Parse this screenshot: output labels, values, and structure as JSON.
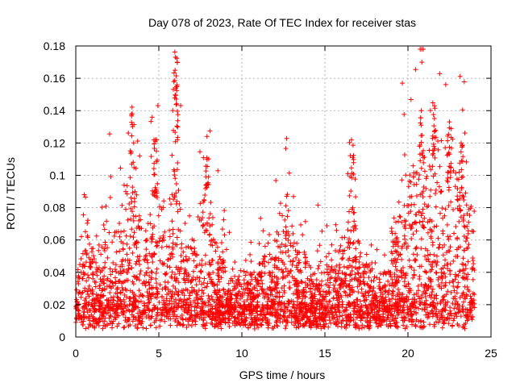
{
  "chart_data": {
    "type": "scatter",
    "title": "Day 078 of 2023, Rate Of TEC Index for receiver stas",
    "xlabel": "GPS time / hours",
    "ylabel": "ROTI / TECUs",
    "xlim": [
      0,
      25
    ],
    "ylim": [
      0,
      0.18
    ],
    "xticks": [
      0,
      5,
      10,
      15,
      20,
      25
    ],
    "yticks": [
      0,
      0.02,
      0.04,
      0.06,
      0.08,
      0.1,
      0.12,
      0.14,
      0.16,
      0.18
    ],
    "xtick_labels": [
      "0",
      "5",
      "10",
      "15",
      "20",
      "25"
    ],
    "ytick_labels": [
      "0",
      "0.02",
      "0.04",
      "0.06",
      "0.08",
      "0.1",
      "0.12",
      "0.14",
      "0.16",
      "0.18"
    ],
    "grid": true,
    "marker": "plus",
    "color": "#ff0000",
    "x_range_observed": [
      0,
      24
    ],
    "notable_points": [
      {
        "x": 3.4,
        "y": 0.138
      },
      {
        "x": 4.8,
        "y": 0.122
      },
      {
        "x": 6.0,
        "y": 0.173
      },
      {
        "x": 6.1,
        "y": 0.155
      },
      {
        "x": 7.9,
        "y": 0.124
      },
      {
        "x": 12.7,
        "y": 0.087
      },
      {
        "x": 16.6,
        "y": 0.122
      },
      {
        "x": 20.8,
        "y": 0.14
      },
      {
        "x": 21.6,
        "y": 0.143
      },
      {
        "x": 22.5,
        "y": 0.133
      },
      {
        "x": 23.2,
        "y": 0.12
      }
    ]
  }
}
